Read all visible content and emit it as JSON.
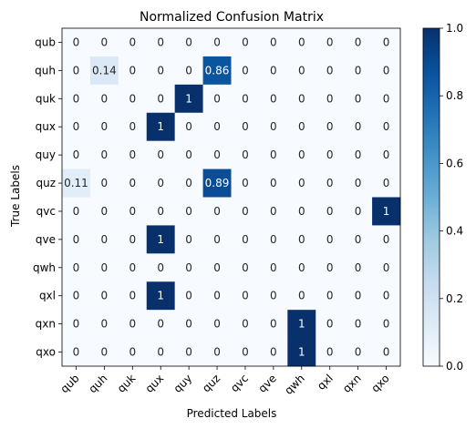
{
  "chart_data": {
    "type": "heatmap",
    "title": "Normalized Confusion Matrix",
    "xlabel": "Predicted Labels",
    "ylabel": "True Labels",
    "x_categories": [
      "qub",
      "quh",
      "quk",
      "qux",
      "quy",
      "quz",
      "qvc",
      "qve",
      "qwh",
      "qxl",
      "qxn",
      "qxo"
    ],
    "y_categories": [
      "qub",
      "quh",
      "quk",
      "qux",
      "quy",
      "quz",
      "qvc",
      "qve",
      "qwh",
      "qxl",
      "qxn",
      "qxo"
    ],
    "values": [
      [
        0,
        0,
        0,
        0,
        0,
        0,
        0,
        0,
        0,
        0,
        0,
        0
      ],
      [
        0,
        0.14,
        0,
        0,
        0,
        0.86,
        0,
        0,
        0,
        0,
        0,
        0
      ],
      [
        0,
        0,
        0,
        0,
        1,
        0,
        0,
        0,
        0,
        0,
        0,
        0
      ],
      [
        0,
        0,
        0,
        1,
        0,
        0,
        0,
        0,
        0,
        0,
        0,
        0
      ],
      [
        0,
        0,
        0,
        0,
        0,
        0,
        0,
        0,
        0,
        0,
        0,
        0
      ],
      [
        0.11,
        0,
        0,
        0,
        0,
        0.89,
        0,
        0,
        0,
        0,
        0,
        0
      ],
      [
        0,
        0,
        0,
        0,
        0,
        0,
        0,
        0,
        0,
        0,
        0,
        1
      ],
      [
        0,
        0,
        0,
        1,
        0,
        0,
        0,
        0,
        0,
        0,
        0,
        0
      ],
      [
        0,
        0,
        0,
        0,
        0,
        0,
        0,
        0,
        0,
        0,
        0,
        0
      ],
      [
        0,
        0,
        0,
        1,
        0,
        0,
        0,
        0,
        0,
        0,
        0,
        0
      ],
      [
        0,
        0,
        0,
        0,
        0,
        0,
        0,
        0,
        1,
        0,
        0,
        0
      ],
      [
        0,
        0,
        0,
        0,
        0,
        0,
        0,
        0,
        1,
        0,
        0,
        0
      ]
    ],
    "value_range": [
      0,
      1
    ],
    "colormap": "Blues",
    "colorbar_ticks": [
      "0.0",
      "0.2",
      "0.4",
      "0.6",
      "0.8",
      "1.0"
    ],
    "grid": false,
    "colors": {
      "low": "#f7fbff",
      "high": "#08306b"
    }
  }
}
